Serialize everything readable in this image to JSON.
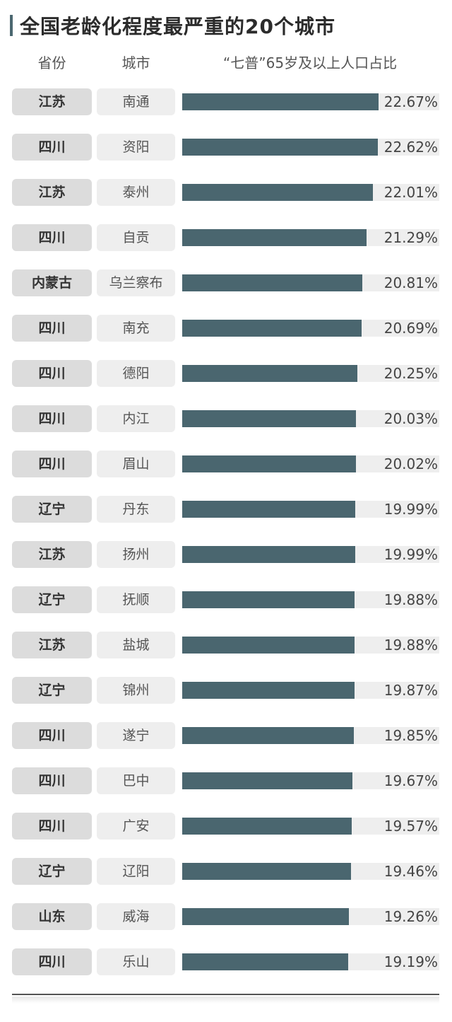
{
  "title": "全国老龄化程度最严重的20个城市",
  "headers": {
    "province": "省份",
    "city": "城市",
    "ratio": "“七普”65岁及以上人口占比"
  },
  "colors": {
    "bar": "#4a666f",
    "track": "#eeeeee",
    "province_bg": "#dcdcdc",
    "city_bg": "#eeeeee",
    "accent": "#4b6770"
  },
  "chart_data": {
    "type": "bar",
    "orientation": "horizontal",
    "title": "全国老龄化程度最严重的20个城市",
    "ylabel": "“七普”65岁及以上人口占比",
    "unit": "%",
    "xlim": [
      0,
      22.67
    ],
    "grid": false,
    "rows": [
      {
        "province": "江苏",
        "city": "南通",
        "value": 22.67,
        "label": "22.67%"
      },
      {
        "province": "四川",
        "city": "资阳",
        "value": 22.62,
        "label": "22.62%"
      },
      {
        "province": "江苏",
        "city": "泰州",
        "value": 22.01,
        "label": "22.01%"
      },
      {
        "province": "四川",
        "city": "自贡",
        "value": 21.29,
        "label": "21.29%"
      },
      {
        "province": "内蒙古",
        "city": "乌兰察布",
        "value": 20.81,
        "label": "20.81%"
      },
      {
        "province": "四川",
        "city": "南充",
        "value": 20.69,
        "label": "20.69%"
      },
      {
        "province": "四川",
        "city": "德阳",
        "value": 20.25,
        "label": "20.25%"
      },
      {
        "province": "四川",
        "city": "内江",
        "value": 20.03,
        "label": "20.03%"
      },
      {
        "province": "四川",
        "city": "眉山",
        "value": 20.02,
        "label": "20.02%"
      },
      {
        "province": "辽宁",
        "city": "丹东",
        "value": 19.99,
        "label": "19.99%"
      },
      {
        "province": "江苏",
        "city": "扬州",
        "value": 19.99,
        "label": "19.99%"
      },
      {
        "province": "辽宁",
        "city": "抚顺",
        "value": 19.88,
        "label": "19.88%"
      },
      {
        "province": "江苏",
        "city": "盐城",
        "value": 19.88,
        "label": "19.88%"
      },
      {
        "province": "辽宁",
        "city": "锦州",
        "value": 19.87,
        "label": "19.87%"
      },
      {
        "province": "四川",
        "city": "遂宁",
        "value": 19.85,
        "label": "19.85%"
      },
      {
        "province": "四川",
        "city": "巴中",
        "value": 19.67,
        "label": "19.67%"
      },
      {
        "province": "四川",
        "city": "广安",
        "value": 19.57,
        "label": "19.57%"
      },
      {
        "province": "辽宁",
        "city": "辽阳",
        "value": 19.46,
        "label": "19.46%"
      },
      {
        "province": "山东",
        "city": "威海",
        "value": 19.26,
        "label": "19.26%"
      },
      {
        "province": "四川",
        "city": "乐山",
        "value": 19.19,
        "label": "19.19%"
      }
    ]
  }
}
